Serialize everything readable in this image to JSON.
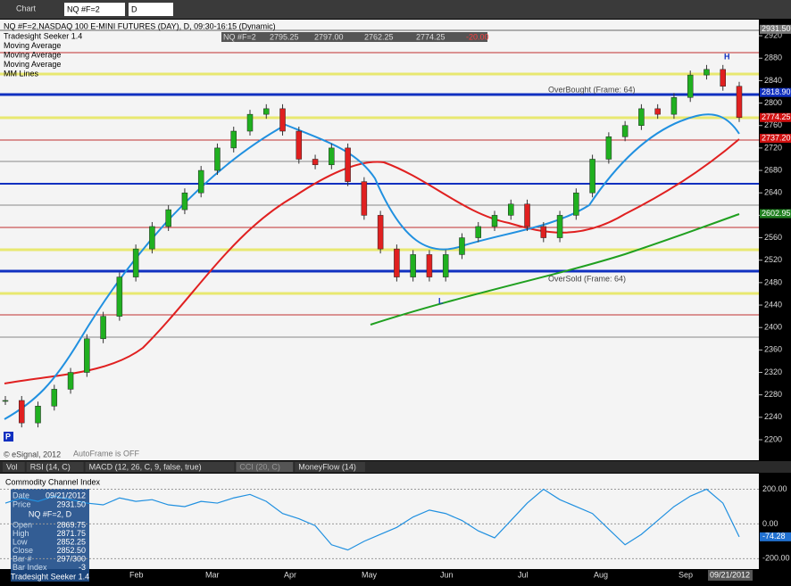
{
  "window": {
    "title": "Chart"
  },
  "toolbar": {
    "symbol": "NQ #F=2",
    "interval": "D"
  },
  "price_chart": {
    "header": "NQ #F=2,NASDAQ 100 E-MINI FUTURES (DAY), D, 09:30-16:15 (Dynamic)",
    "studies": [
      "Tradesight Seeker 1.4",
      "Moving Average",
      "Moving Average",
      "Moving Average",
      "MM Lines"
    ],
    "quote_bar": [
      "NQ #F=2",
      "2795.25",
      "2797.00",
      "2762.25",
      "2774.25",
      "-20.00"
    ],
    "ylim": [
      2180,
      2940
    ],
    "yticks": [
      2200,
      2240,
      2280,
      2320,
      2360,
      2400,
      2440,
      2480,
      2520,
      2560,
      2600,
      2640,
      2680,
      2720,
      2760,
      2800,
      2840,
      2880,
      2920
    ],
    "tags": [
      {
        "value": 2931.5,
        "label": "2931.50",
        "color": "#7a7a7a"
      },
      {
        "value": 2818.9,
        "label": "2818.90",
        "color": "#1030c0"
      },
      {
        "value": 2774.25,
        "label": "2774.25",
        "color": "#d01010"
      },
      {
        "value": 2737.2,
        "label": "2737.20",
        "color": "#d01010"
      },
      {
        "value": 2602.95,
        "label": "2602.95",
        "color": "#208020"
      }
    ],
    "close": [
      2270,
      2230,
      2260,
      2290,
      2320,
      2380,
      2420,
      2490,
      2540,
      2580,
      2610,
      2640,
      2680,
      2720,
      2750,
      2780,
      2790,
      2750,
      2700,
      2690,
      2720,
      2660,
      2600,
      2540,
      2490,
      2530,
      2490,
      2530,
      2560,
      2580,
      2600,
      2620,
      2580,
      2560,
      2600,
      2640,
      2700,
      2740,
      2760,
      2790,
      2780,
      2810,
      2850,
      2860,
      2830,
      2774.25
    ],
    "overbought": "OverBought (Frame: 64)",
    "oversold": "OverSold (Frame: 64)",
    "copyright": "© eSignal, 2012",
    "autoframe": "AutoFrame is OFF",
    "high_marker": "H",
    "low_marker": "L",
    "p_marker": "P"
  },
  "tabs": [
    "Vol",
    "RSI (14, C)",
    "MACD (12, 26, C, 9, false, true)",
    "CCI (20, C)",
    "MoneyFlow (14)"
  ],
  "cci": {
    "title": "Commodity Channel Index",
    "ylim": [
      -260,
      290
    ],
    "yticks": [
      {
        "value": 200,
        "label": "200.00"
      },
      {
        "value": 0,
        "label": "0.00"
      },
      {
        "value": -200,
        "label": "-200.00"
      }
    ],
    "current": {
      "value": -74.28,
      "label": "-74.28"
    },
    "values": [
      120,
      150,
      130,
      160,
      140,
      120,
      110,
      150,
      130,
      140,
      110,
      100,
      130,
      120,
      150,
      170,
      130,
      60,
      30,
      -10,
      -120,
      -150,
      -100,
      -60,
      -20,
      40,
      80,
      60,
      20,
      -40,
      -80,
      20,
      120,
      200,
      140,
      100,
      60,
      -30,
      -120,
      -60,
      20,
      100,
      160,
      200,
      120,
      -74.28
    ]
  },
  "x_axis": {
    "months": [
      "Feb",
      "Mar",
      "Apr",
      "May",
      "Jun",
      "Jul",
      "Aug",
      "Sep"
    ],
    "last_date": "09/21/2012"
  },
  "data_window": {
    "rows": [
      [
        "Date",
        "09/21/2012"
      ],
      [
        "Price",
        "2931.50"
      ]
    ],
    "symbol": "NQ #F=2, D",
    "ohlc": [
      [
        "Open",
        "2869.75"
      ],
      [
        "High",
        "2871.75"
      ],
      [
        "Low",
        "2852.25"
      ],
      [
        "Close",
        "2852.50"
      ],
      [
        "Bar #",
        "297/300"
      ],
      [
        "Bar Index",
        "-3"
      ]
    ],
    "study": "Tradesight Seeker 1.4"
  }
}
